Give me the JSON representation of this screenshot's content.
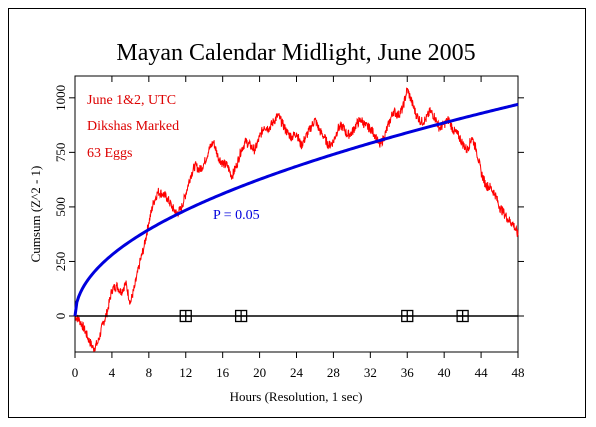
{
  "chart_data": {
    "type": "line",
    "title": "Mayan Calendar Midlight, June 2005",
    "xlabel": "Hours (Resolution, 1 sec)",
    "ylabel": "Cumsum (Z^2 - 1)",
    "xlim": [
      0,
      48
    ],
    "ylim": [
      -165,
      1100
    ],
    "x_ticks": [
      0,
      4,
      8,
      12,
      16,
      20,
      24,
      28,
      32,
      36,
      40,
      44,
      48
    ],
    "y_ticks": [
      0,
      250,
      500,
      750,
      1000
    ],
    "annotations": [
      "June 1&2, UTC",
      "Dikshas Marked",
      "63 Eggs"
    ],
    "series": [
      {
        "name": "",
        "color": "#ff0000",
        "x": [
          0,
          0.5,
          1,
          1.5,
          2,
          2.5,
          3,
          3.5,
          4,
          4.5,
          5,
          5.5,
          6,
          6.5,
          7,
          7.5,
          8,
          8.5,
          9,
          9.5,
          10,
          10.5,
          11,
          11.5,
          12,
          12.5,
          13,
          13.5,
          14,
          14.5,
          15,
          15.5,
          16,
          16.5,
          17,
          17.5,
          18,
          18.5,
          19,
          19.5,
          20,
          20.5,
          21,
          21.5,
          22,
          22.5,
          23,
          23.5,
          24,
          24.5,
          25,
          25.5,
          26,
          26.5,
          27,
          27.5,
          28,
          28.5,
          29,
          29.5,
          30,
          30.5,
          31,
          31.5,
          32,
          32.5,
          33,
          33.5,
          34,
          34.5,
          35,
          35.5,
          36,
          36.5,
          37,
          37.5,
          38,
          38.5,
          39,
          39.5,
          40,
          40.5,
          41,
          41.5,
          42,
          42.5,
          43,
          43.5,
          44,
          44.5,
          45,
          45.5,
          46,
          46.5,
          47,
          47.5,
          48
        ],
        "values": [
          0,
          -20,
          -60,
          -110,
          -150,
          -120,
          -40,
          20,
          120,
          140,
          110,
          150,
          60,
          140,
          240,
          320,
          430,
          520,
          570,
          560,
          540,
          500,
          470,
          490,
          560,
          640,
          690,
          670,
          700,
          760,
          800,
          730,
          700,
          690,
          640,
          690,
          760,
          800,
          780,
          760,
          820,
          870,
          860,
          890,
          920,
          880,
          840,
          820,
          840,
          780,
          820,
          860,
          900,
          850,
          820,
          780,
          800,
          860,
          870,
          830,
          840,
          880,
          900,
          870,
          860,
          830,
          780,
          820,
          880,
          940,
          920,
          950,
          1040,
          980,
          920,
          890,
          900,
          940,
          910,
          860,
          880,
          900,
          850,
          830,
          790,
          760,
          820,
          760,
          660,
          600,
          590,
          560,
          500,
          470,
          440,
          420,
          370
        ]
      },
      {
        "name": "P = 0.05",
        "color": "#0000dd",
        "function": "140 * sqrt(x)"
      },
      {
        "name": "",
        "color": "#000000",
        "x": [
          0,
          48
        ],
        "values": [
          0,
          0
        ]
      }
    ],
    "markers": [
      {
        "label": "",
        "x": 12,
        "y": 0
      },
      {
        "label": "",
        "x": 18,
        "y": 0
      },
      {
        "label": "",
        "x": 36,
        "y": 0
      },
      {
        "label": "",
        "x": 42,
        "y": 0
      }
    ],
    "grid": false,
    "legend": "none"
  }
}
